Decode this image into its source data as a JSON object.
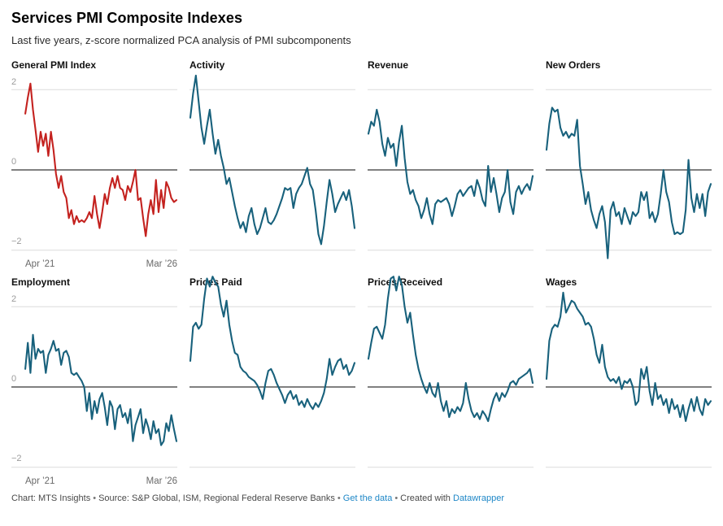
{
  "header": {
    "title": "Services PMI Composite Indexes",
    "subtitle": "Last five years, z-score normalized PCA analysis of PMI subcomponents"
  },
  "axis": {
    "y_ticks": {
      "top": "2",
      "zero": "0",
      "bottom": "−2"
    },
    "x_start": "Apr ’21",
    "x_end": "Mar ’26"
  },
  "colors": {
    "highlight": "#c4221f",
    "series": "#18617c",
    "grid": "#dcdcdc",
    "zero_line": "#000000",
    "link": "#1e87c7"
  },
  "footer": {
    "credit": "Chart: MTS Insights",
    "sep": "•",
    "source": "Source: S&P Global, ISM, Regional Federal Reserve Banks",
    "get_data": "Get the data",
    "created_with": "Created with",
    "datawrapper": "Datawrapper"
  },
  "chart_data": [
    {
      "type": "line",
      "title": "General PMI Index",
      "color": "#c4221f",
      "x_range": [
        "Apr ’21",
        "Mar ’26"
      ],
      "y_ticks": [
        2,
        0,
        -2
      ],
      "ylim": [
        -2.3,
        2.4
      ],
      "values": [
        1.4,
        1.8,
        2.15,
        1.5,
        1.0,
        0.45,
        0.95,
        0.6,
        0.9,
        0.35,
        0.95,
        0.5,
        -0.1,
        -0.45,
        -0.15,
        -0.55,
        -0.7,
        -1.2,
        -1.0,
        -1.35,
        -1.15,
        -1.3,
        -1.25,
        -1.3,
        -1.2,
        -1.05,
        -1.2,
        -0.65,
        -1.1,
        -1.45,
        -1.05,
        -0.6,
        -0.85,
        -0.45,
        -0.2,
        -0.45,
        -0.15,
        -0.45,
        -0.5,
        -0.75,
        -0.4,
        -0.55,
        -0.3,
        0.0,
        -0.75,
        -0.7,
        -1.2,
        -1.65,
        -1.1,
        -0.75,
        -1.1,
        -0.25,
        -1.05,
        -0.5,
        -0.95,
        -0.3,
        -0.45,
        -0.7,
        -0.8,
        -0.75
      ]
    },
    {
      "type": "line",
      "title": "Activity",
      "color": "#18617c",
      "x_range": [
        "Apr ’21",
        "Mar ’26"
      ],
      "y_ticks": [
        2,
        0,
        -2
      ],
      "ylim": [
        -2.3,
        2.4
      ],
      "values": [
        1.3,
        1.9,
        2.35,
        1.7,
        1.05,
        0.65,
        1.1,
        1.5,
        0.9,
        0.4,
        0.75,
        0.35,
        0.05,
        -0.35,
        -0.2,
        -0.55,
        -0.9,
        -1.2,
        -1.45,
        -1.3,
        -1.55,
        -1.15,
        -0.95,
        -1.35,
        -1.6,
        -1.45,
        -1.2,
        -0.95,
        -1.3,
        -1.35,
        -1.25,
        -1.1,
        -0.9,
        -0.7,
        -0.45,
        -0.5,
        -0.45,
        -0.95,
        -0.6,
        -0.45,
        -0.35,
        -0.15,
        0.05,
        -0.35,
        -0.5,
        -1.0,
        -1.6,
        -1.85,
        -1.4,
        -0.8,
        -0.25,
        -0.6,
        -1.05,
        -0.85,
        -0.7,
        -0.55,
        -0.75,
        -0.5,
        -0.9,
        -1.45
      ]
    },
    {
      "type": "line",
      "title": "Revenue",
      "color": "#18617c",
      "x_range": [
        "Apr ’21",
        "Mar ’26"
      ],
      "y_ticks": [
        2,
        0,
        -2
      ],
      "ylim": [
        -2.3,
        2.4
      ],
      "values": [
        0.9,
        1.2,
        1.1,
        1.5,
        1.2,
        0.65,
        0.35,
        0.8,
        0.55,
        0.65,
        0.1,
        0.7,
        1.1,
        0.3,
        -0.3,
        -0.6,
        -0.5,
        -0.75,
        -0.9,
        -1.2,
        -1.0,
        -0.7,
        -1.1,
        -1.35,
        -0.85,
        -0.75,
        -0.8,
        -0.75,
        -0.7,
        -0.85,
        -1.15,
        -0.9,
        -0.6,
        -0.5,
        -0.65,
        -0.55,
        -0.45,
        -0.4,
        -0.65,
        -0.25,
        -0.45,
        -0.75,
        -0.9,
        0.1,
        -0.55,
        -0.2,
        -0.6,
        -1.05,
        -0.7,
        -0.55,
        0.0,
        -0.8,
        -1.1,
        -0.55,
        -0.4,
        -0.6,
        -0.45,
        -0.35,
        -0.5,
        -0.15
      ]
    },
    {
      "type": "line",
      "title": "New Orders",
      "color": "#18617c",
      "x_range": [
        "Apr ’21",
        "Mar ’26"
      ],
      "y_ticks": [
        2,
        0,
        -2
      ],
      "ylim": [
        -2.3,
        2.4
      ],
      "values": [
        0.5,
        1.15,
        1.55,
        1.45,
        1.5,
        1.05,
        0.85,
        0.95,
        0.8,
        0.9,
        0.85,
        1.25,
        0.1,
        -0.35,
        -0.85,
        -0.55,
        -1.0,
        -1.25,
        -1.45,
        -1.1,
        -0.9,
        -1.3,
        -2.2,
        -1.0,
        -0.8,
        -1.15,
        -1.05,
        -1.35,
        -0.95,
        -1.15,
        -1.35,
        -1.05,
        -1.15,
        -1.05,
        -0.55,
        -0.75,
        -0.55,
        -1.2,
        -1.05,
        -1.3,
        -1.1,
        -0.6,
        0.0,
        -0.55,
        -0.8,
        -1.3,
        -1.6,
        -1.55,
        -1.6,
        -1.55,
        -1.0,
        0.25,
        -0.7,
        -1.05,
        -0.6,
        -0.95,
        -0.6,
        -1.15,
        -0.55,
        -0.35
      ]
    },
    {
      "type": "line",
      "title": "Employment",
      "color": "#18617c",
      "x_range": [
        "Apr ’21",
        "Mar ’26"
      ],
      "y_ticks": [
        2,
        0,
        -2
      ],
      "ylim": [
        -2.3,
        2.4
      ],
      "values": [
        0.45,
        1.1,
        0.35,
        1.3,
        0.7,
        0.95,
        0.85,
        0.9,
        0.35,
        0.8,
        0.95,
        1.15,
        0.9,
        0.95,
        0.55,
        0.85,
        0.9,
        0.75,
        0.35,
        0.3,
        0.35,
        0.25,
        0.15,
        0.0,
        -0.6,
        -0.15,
        -0.8,
        -0.35,
        -0.65,
        -0.3,
        -0.15,
        -0.5,
        -0.95,
        -0.35,
        -0.5,
        -1.05,
        -0.55,
        -0.45,
        -0.75,
        -0.65,
        -0.9,
        -0.55,
        -1.35,
        -0.95,
        -0.75,
        -0.55,
        -1.15,
        -0.8,
        -1.0,
        -1.3,
        -0.85,
        -1.15,
        -1.05,
        -1.45,
        -1.35,
        -0.9,
        -1.1,
        -0.7,
        -1.05,
        -1.35
      ]
    },
    {
      "type": "line",
      "title": "Prices Paid",
      "color": "#18617c",
      "x_range": [
        "Apr ’21",
        "Mar ’26"
      ],
      "y_ticks": [
        2,
        0,
        -2
      ],
      "ylim": [
        -2.3,
        2.4
      ],
      "values": [
        0.65,
        1.5,
        1.6,
        1.45,
        1.55,
        2.2,
        2.7,
        2.5,
        2.75,
        2.6,
        2.5,
        2.05,
        1.75,
        2.15,
        1.55,
        1.15,
        0.85,
        0.8,
        0.5,
        0.4,
        0.35,
        0.25,
        0.2,
        0.15,
        0.05,
        -0.1,
        -0.3,
        0.1,
        0.4,
        0.45,
        0.3,
        0.1,
        -0.05,
        -0.2,
        -0.4,
        -0.2,
        -0.1,
        -0.3,
        -0.2,
        -0.45,
        -0.35,
        -0.5,
        -0.3,
        -0.45,
        -0.55,
        -0.4,
        -0.5,
        -0.35,
        -0.15,
        0.2,
        0.7,
        0.3,
        0.5,
        0.65,
        0.7,
        0.45,
        0.55,
        0.3,
        0.4,
        0.6
      ]
    },
    {
      "type": "line",
      "title": "Prices Received",
      "color": "#18617c",
      "x_range": [
        "Apr ’21",
        "Mar ’26"
      ],
      "y_ticks": [
        2,
        0,
        -2
      ],
      "ylim": [
        -2.3,
        2.4
      ],
      "values": [
        0.7,
        1.1,
        1.45,
        1.5,
        1.35,
        1.2,
        1.55,
        2.2,
        2.7,
        2.75,
        2.4,
        2.75,
        2.55,
        2.0,
        1.6,
        1.85,
        1.3,
        0.8,
        0.45,
        0.2,
        0.0,
        -0.15,
        0.1,
        -0.15,
        -0.25,
        0.1,
        -0.35,
        -0.6,
        -0.35,
        -0.75,
        -0.55,
        -0.65,
        -0.5,
        -0.6,
        -0.4,
        0.1,
        -0.3,
        -0.6,
        -0.75,
        -0.65,
        -0.8,
        -0.6,
        -0.7,
        -0.85,
        -0.55,
        -0.3,
        -0.15,
        -0.35,
        -0.15,
        -0.25,
        -0.1,
        0.1,
        0.15,
        0.05,
        0.2,
        0.25,
        0.3,
        0.35,
        0.45,
        0.1
      ]
    },
    {
      "type": "line",
      "title": "Wages",
      "color": "#18617c",
      "x_range": [
        "Apr ’21",
        "Mar ’26"
      ],
      "y_ticks": [
        2,
        0,
        -2
      ],
      "ylim": [
        -2.3,
        2.4
      ],
      "values": [
        0.2,
        1.15,
        1.45,
        1.55,
        1.5,
        1.75,
        2.35,
        1.85,
        2.0,
        2.15,
        2.1,
        1.95,
        1.85,
        1.75,
        1.55,
        1.6,
        1.5,
        1.2,
        0.8,
        0.6,
        1.05,
        0.5,
        0.25,
        0.15,
        0.2,
        0.1,
        0.25,
        -0.05,
        0.15,
        0.1,
        0.2,
        0.0,
        -0.45,
        -0.35,
        0.45,
        0.2,
        0.5,
        -0.1,
        -0.45,
        0.1,
        -0.3,
        -0.2,
        -0.45,
        -0.3,
        -0.65,
        -0.3,
        -0.55,
        -0.45,
        -0.75,
        -0.45,
        -0.85,
        -0.55,
        -0.3,
        -0.6,
        -0.25,
        -0.55,
        -0.7,
        -0.3,
        -0.45,
        -0.35
      ]
    }
  ]
}
